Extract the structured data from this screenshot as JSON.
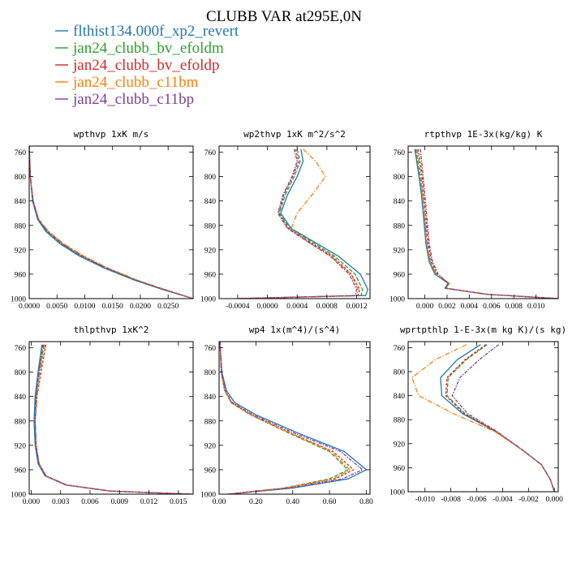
{
  "title": "CLUBB VAR at295E,0N",
  "legend": [
    {
      "name": "flthist134.000f_xp2_revert",
      "color": "#1f77b4"
    },
    {
      "name": "jan24_clubb_bv_efoldm",
      "color": "#2ca02c"
    },
    {
      "name": "jan24_clubb_bv_efoldp",
      "color": "#d62728"
    },
    {
      "name": "jan24_clubb_c11bm",
      "color": "#ff7f0e"
    },
    {
      "name": "jan24_clubb_c11bp",
      "color": "#7f3f98"
    }
  ],
  "chart_data": [
    {
      "type": "line",
      "title": "wpthvp  1xK m/s",
      "xlim": [
        0,
        0.0295
      ],
      "ylim": [
        1000,
        750
      ],
      "xticks": [
        0,
        0.005,
        0.01,
        0.015,
        0.02,
        0.025
      ],
      "xtick_labels": [
        "0.0000",
        "0.0050",
        "0.0100",
        "0.0150",
        "0.0200",
        "0.0250"
      ],
      "yticks": [
        760,
        800,
        840,
        880,
        920,
        960,
        1000
      ],
      "series": [
        {
          "x": [
            0,
            0.0002,
            0.0006,
            0.0015,
            0.003,
            0.0055,
            0.009,
            0.0135,
            0.019,
            0.024,
            0.0295
          ],
          "y": [
            750,
            800,
            840,
            870,
            890,
            910,
            930,
            950,
            970,
            985,
            1000
          ]
        },
        {
          "x": [
            0,
            0.0002,
            0.0007,
            0.0016,
            0.0032,
            0.0058,
            0.0093,
            0.0138,
            0.0192,
            0.0242,
            0.0295
          ],
          "y": [
            750,
            800,
            840,
            870,
            890,
            910,
            930,
            950,
            970,
            985,
            1000
          ]
        },
        {
          "x": [
            0,
            0.0002,
            0.0007,
            0.0017,
            0.0034,
            0.006,
            0.0096,
            0.014,
            0.0194,
            0.0243,
            0.0295
          ],
          "y": [
            750,
            800,
            840,
            870,
            890,
            910,
            930,
            950,
            970,
            985,
            1000
          ]
        },
        {
          "x": [
            0,
            0.0002,
            0.0007,
            0.0017,
            0.0035,
            0.0062,
            0.0098,
            0.0142,
            0.0195,
            0.0244,
            0.0295
          ],
          "y": [
            750,
            800,
            840,
            870,
            890,
            910,
            930,
            950,
            970,
            985,
            1000
          ]
        },
        {
          "x": [
            0,
            0.0002,
            0.0007,
            0.0016,
            0.0033,
            0.0059,
            0.0094,
            0.0139,
            0.0193,
            0.0242,
            0.0295
          ],
          "y": [
            750,
            800,
            840,
            870,
            890,
            910,
            930,
            950,
            970,
            985,
            1000
          ]
        }
      ]
    },
    {
      "type": "line",
      "title": "wp2thvp  1xK m^2/s^2",
      "xlim": [
        -0.00065,
        0.00138
      ],
      "ylim": [
        1000,
        750
      ],
      "xticks": [
        -0.0004,
        0,
        0.0004,
        0.0008,
        0.0012
      ],
      "xtick_labels": [
        "-0.0004",
        "0.0000",
        "0.0004",
        "0.0008",
        "0.0012"
      ],
      "yticks": [
        760,
        800,
        840,
        880,
        920,
        960,
        1000
      ],
      "series": [
        {
          "x": [
            0.00045,
            0.00048,
            0.0004,
            0.00027,
            0.00018,
            0.00032,
            0.0006,
            0.00095,
            0.00125,
            0.00135,
            0.00132,
            -0.0004
          ],
          "y": [
            755,
            775,
            800,
            830,
            860,
            885,
            905,
            930,
            960,
            985,
            995,
            1000
          ]
        },
        {
          "x": [
            0.0004,
            0.00044,
            0.00036,
            0.00024,
            0.00016,
            0.0003,
            0.00057,
            0.0009,
            0.00118,
            0.00128,
            0.00126,
            -0.0004
          ],
          "y": [
            755,
            775,
            800,
            830,
            860,
            885,
            905,
            930,
            960,
            985,
            995,
            1000
          ]
        },
        {
          "x": [
            0.00038,
            0.00042,
            0.00034,
            0.00022,
            0.00015,
            0.00028,
            0.00054,
            0.00087,
            0.00113,
            0.00124,
            0.00122,
            -0.0004
          ],
          "y": [
            755,
            775,
            800,
            830,
            860,
            885,
            905,
            930,
            960,
            985,
            995,
            1000
          ]
        },
        {
          "x": [
            0.00048,
            0.00065,
            0.00078,
            0.0006,
            0.0004,
            0.00032,
            0.00052,
            0.00085,
            0.00112,
            0.00122,
            0.0012,
            -0.0004
          ],
          "y": [
            755,
            775,
            800,
            830,
            860,
            885,
            905,
            930,
            960,
            985,
            995,
            1000
          ]
        },
        {
          "x": [
            0.00036,
            0.0004,
            0.00033,
            0.00021,
            0.00014,
            0.00027,
            0.00052,
            0.00084,
            0.0011,
            0.0012,
            0.00118,
            -0.0004
          ],
          "y": [
            755,
            775,
            800,
            830,
            860,
            885,
            905,
            930,
            960,
            985,
            995,
            1000
          ]
        }
      ]
    },
    {
      "type": "line",
      "title": "rtpthvp  1E-3x(kg/kg) K",
      "xlim": [
        -0.0015,
        0.012
      ],
      "ylim": [
        1000,
        750
      ],
      "xticks": [
        0,
        0.002,
        0.004,
        0.006,
        0.008,
        0.01
      ],
      "xtick_labels": [
        "0.000",
        "0.002",
        "0.004",
        "0.006",
        "0.008",
        "0.010"
      ],
      "yticks": [
        760,
        800,
        840,
        880,
        920,
        960,
        1000
      ],
      "series": [
        {
          "x": [
            -0.0009,
            -0.0006,
            -0.0003,
            -0.0001,
            0.0001,
            0.0004,
            0.0009,
            0.0021,
            0.0018,
            0.0055,
            0.012
          ],
          "y": [
            755,
            790,
            830,
            870,
            910,
            940,
            960,
            975,
            983,
            993,
            1000
          ]
        },
        {
          "x": [
            -0.0008,
            -0.0005,
            -0.0002,
            0,
            0.0002,
            0.0005,
            0.001,
            0.0022,
            0.0019,
            0.0056,
            0.012
          ],
          "y": [
            755,
            790,
            830,
            870,
            910,
            940,
            960,
            975,
            983,
            993,
            1000
          ]
        },
        {
          "x": [
            -0.0006,
            -0.0003,
            -0.0001,
            0.0001,
            0.0003,
            0.0006,
            0.0011,
            0.0021,
            0.0019,
            0.0056,
            0.012
          ],
          "y": [
            755,
            790,
            830,
            870,
            910,
            940,
            960,
            975,
            983,
            993,
            1000
          ]
        },
        {
          "x": [
            -0.0007,
            -0.0004,
            -0.0002,
            0,
            0.0002,
            0.0005,
            0.001,
            0.0022,
            0.0019,
            0.0056,
            0.012
          ],
          "y": [
            755,
            790,
            830,
            870,
            910,
            940,
            960,
            975,
            983,
            993,
            1000
          ]
        },
        {
          "x": [
            -0.0004,
            -0.0002,
            0,
            0.0002,
            0.0004,
            0.0007,
            0.0012,
            0.0021,
            0.0019,
            0.0056,
            0.012
          ],
          "y": [
            755,
            790,
            830,
            870,
            910,
            940,
            960,
            975,
            983,
            993,
            1000
          ]
        }
      ]
    },
    {
      "type": "line",
      "title": "thlpthvp  1xK^2",
      "xlim": [
        -0.0002,
        0.0165
      ],
      "ylim": [
        1000,
        750
      ],
      "xticks": [
        0,
        0.003,
        0.006,
        0.009,
        0.012,
        0.015
      ],
      "xtick_labels": [
        "0.000",
        "0.003",
        "0.006",
        "0.009",
        "0.012",
        "0.015"
      ],
      "yticks": [
        760,
        800,
        840,
        880,
        920,
        960,
        1000
      ],
      "series": [
        {
          "x": [
            0.0011,
            0.0007,
            0.0004,
            0.0003,
            0.0004,
            0.0007,
            0.0014,
            0.0035,
            0.008,
            0.0163
          ],
          "y": [
            755,
            800,
            840,
            880,
            920,
            950,
            970,
            985,
            995,
            1000
          ]
        },
        {
          "x": [
            0.0013,
            0.0008,
            0.0005,
            0.0004,
            0.0005,
            0.0008,
            0.0015,
            0.0036,
            0.0081,
            0.0163
          ],
          "y": [
            755,
            800,
            840,
            880,
            920,
            950,
            970,
            985,
            995,
            1000
          ]
        },
        {
          "x": [
            0.0015,
            0.001,
            0.0006,
            0.0004,
            0.0005,
            0.0008,
            0.0015,
            0.0036,
            0.0081,
            0.0163
          ],
          "y": [
            755,
            800,
            840,
            880,
            920,
            950,
            970,
            985,
            995,
            1000
          ]
        },
        {
          "x": [
            0.0014,
            0.0009,
            0.0006,
            0.0004,
            0.0005,
            0.0008,
            0.0015,
            0.0036,
            0.0081,
            0.0163
          ],
          "y": [
            755,
            800,
            840,
            880,
            920,
            950,
            970,
            985,
            995,
            1000
          ]
        },
        {
          "x": [
            0.0012,
            0.0008,
            0.0005,
            0.0004,
            0.0005,
            0.0008,
            0.0015,
            0.0036,
            0.0081,
            0.0163
          ],
          "y": [
            755,
            800,
            840,
            880,
            920,
            950,
            970,
            985,
            995,
            1000
          ]
        }
      ]
    },
    {
      "type": "line",
      "title": "wp4  1x(m^4)/(s^4)",
      "xlim": [
        0,
        0.82
      ],
      "ylim": [
        1000,
        750
      ],
      "xticks": [
        0,
        0.2,
        0.4,
        0.6,
        0.8
      ],
      "xtick_labels": [
        "0.00",
        "0.20",
        "0.40",
        "0.60",
        "0.80"
      ],
      "yticks": [
        760,
        800,
        840,
        880,
        920,
        960,
        1000
      ],
      "series": [
        {
          "x": [
            0.005,
            0.015,
            0.04,
            0.085,
            0.2,
            0.43,
            0.68,
            0.8,
            0.7,
            0.4,
            0.05
          ],
          "y": [
            750,
            800,
            830,
            850,
            870,
            900,
            930,
            960,
            975,
            990,
            1000
          ]
        },
        {
          "x": [
            0.005,
            0.012,
            0.03,
            0.065,
            0.17,
            0.38,
            0.6,
            0.7,
            0.6,
            0.35,
            0.05
          ],
          "y": [
            750,
            800,
            830,
            850,
            870,
            900,
            930,
            960,
            975,
            990,
            1000
          ]
        },
        {
          "x": [
            0.005,
            0.012,
            0.031,
            0.067,
            0.175,
            0.39,
            0.62,
            0.73,
            0.63,
            0.36,
            0.05
          ],
          "y": [
            750,
            800,
            830,
            850,
            870,
            900,
            930,
            960,
            975,
            990,
            1000
          ]
        },
        {
          "x": [
            0.005,
            0.012,
            0.031,
            0.066,
            0.172,
            0.385,
            0.61,
            0.71,
            0.62,
            0.355,
            0.05
          ],
          "y": [
            750,
            800,
            830,
            850,
            870,
            900,
            930,
            960,
            975,
            990,
            1000
          ]
        },
        {
          "x": [
            0.005,
            0.013,
            0.034,
            0.072,
            0.185,
            0.41,
            0.66,
            0.78,
            0.67,
            0.38,
            0.05
          ],
          "y": [
            750,
            800,
            830,
            850,
            870,
            900,
            930,
            960,
            975,
            990,
            1000
          ]
        }
      ]
    },
    {
      "type": "line",
      "title": "wprtpthlp  1-E-3x(m kg K)/(s kg)",
      "xlim": [
        -0.0113,
        0.0003
      ],
      "ylim": [
        1000,
        750
      ],
      "xticks": [
        -0.01,
        -0.008,
        -0.006,
        -0.004,
        -0.002,
        0
      ],
      "xtick_labels": [
        "-0.010",
        "-0.008",
        "-0.006",
        "-0.004",
        "-0.002",
        "0.000"
      ],
      "yticks": [
        760,
        800,
        840,
        880,
        920,
        960,
        1000
      ],
      "series": [
        {
          "x": [
            -0.0057,
            -0.0075,
            -0.0088,
            -0.0087,
            -0.0071,
            -0.0045,
            -0.0025,
            -0.001,
            -0.0003,
            0
          ],
          "y": [
            755,
            780,
            810,
            840,
            870,
            900,
            930,
            955,
            980,
            1000
          ]
        },
        {
          "x": [
            -0.0052,
            -0.0068,
            -0.0082,
            -0.0083,
            -0.0069,
            -0.0045,
            -0.0025,
            -0.001,
            -0.0003,
            0
          ],
          "y": [
            755,
            780,
            810,
            840,
            870,
            900,
            930,
            955,
            980,
            1000
          ]
        },
        {
          "x": [
            -0.0053,
            -0.0069,
            -0.0083,
            -0.0084,
            -0.007,
            -0.0045,
            -0.0025,
            -0.001,
            -0.0003,
            0
          ],
          "y": [
            755,
            780,
            810,
            840,
            870,
            900,
            930,
            955,
            980,
            1000
          ]
        },
        {
          "x": [
            -0.0068,
            -0.0092,
            -0.011,
            -0.0105,
            -0.0078,
            -0.0046,
            -0.0025,
            -0.001,
            -0.0003,
            0
          ],
          "y": [
            755,
            780,
            810,
            840,
            870,
            900,
            930,
            955,
            980,
            1000
          ]
        },
        {
          "x": [
            -0.0043,
            -0.0058,
            -0.0073,
            -0.0079,
            -0.0067,
            -0.0044,
            -0.0025,
            -0.001,
            -0.0003,
            0
          ],
          "y": [
            755,
            780,
            810,
            840,
            870,
            900,
            930,
            955,
            980,
            1000
          ]
        }
      ]
    }
  ]
}
